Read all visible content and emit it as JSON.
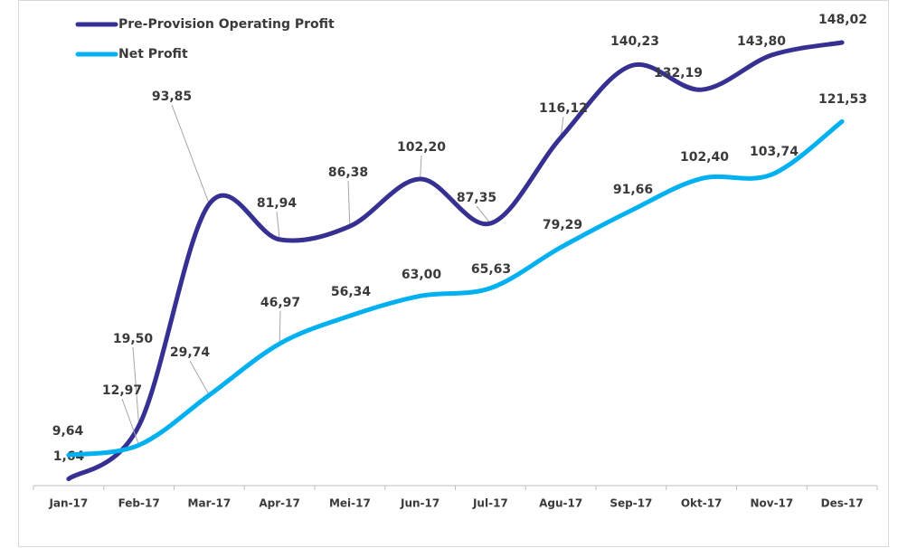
{
  "chart_data": {
    "type": "line",
    "categories": [
      "Jan-17",
      "Feb-17",
      "Mar-17",
      "Apr-17",
      "Mei-17",
      "Jun-17",
      "Jul-17",
      "Agu-17",
      "Sep-17",
      "Okt-17",
      "Nov-17",
      "Des-17"
    ],
    "series": [
      {
        "name": "Pre-Provision Operating Profit",
        "color": "#353092",
        "values": [
          1.64,
          19.5,
          93.85,
          81.94,
          86.38,
          102.2,
          87.35,
          116.12,
          140.23,
          132.19,
          143.8,
          148.02
        ],
        "value_labels": [
          "1,64",
          "19,50",
          "93,85",
          "81,94",
          "86,38",
          "102,20",
          "87,35",
          "116,12",
          "140,23",
          "132,19",
          "143,80",
          "148,02"
        ]
      },
      {
        "name": "Net Profit",
        "color": "#00b0f0",
        "values": [
          9.64,
          12.97,
          29.74,
          46.97,
          56.34,
          63.0,
          65.63,
          79.29,
          91.66,
          102.4,
          103.74,
          121.53
        ],
        "value_labels": [
          "9,64",
          "12,97",
          "29,74",
          "46,97",
          "56,34",
          "63,00",
          "65,63",
          "79,29",
          "91,66",
          "102,40",
          "103,74",
          "121,53"
        ]
      }
    ]
  }
}
